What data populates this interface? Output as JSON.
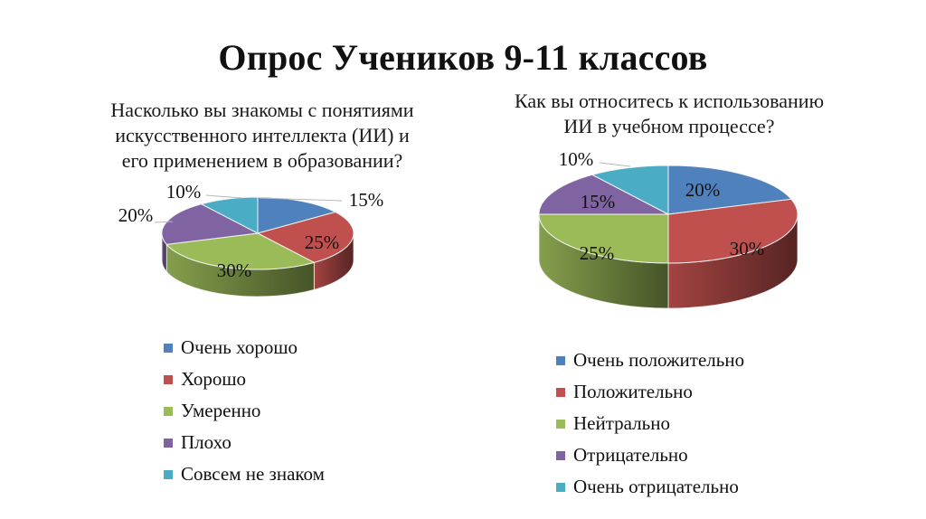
{
  "title": "Опрос Учеников 9-11 классов",
  "chart_data": [
    {
      "type": "pie",
      "title": "Насколько вы знакомы с понятиями искусственного интеллекта (ИИ) и его применением в образовании?",
      "categories": [
        "Очень хорошо",
        "Хорошо",
        "Умеренно",
        "Плохо",
        "Совсем не знаком"
      ],
      "values": [
        15,
        25,
        30,
        20,
        10
      ],
      "labels": [
        "15%",
        "25%",
        "30%",
        "20%",
        "10%"
      ],
      "colors": [
        "#4F81BD",
        "#C0504D",
        "#9BBB59",
        "#8064A2",
        "#4BACC6"
      ],
      "legend_position": "bottom",
      "style": "3d"
    },
    {
      "type": "pie",
      "title": "Как вы относитесь к использованию ИИ в учебном процессе?",
      "categories": [
        "Очень положительно",
        "Положительно",
        "Нейтрально",
        "Отрицательно",
        "Очень отрицательно"
      ],
      "values": [
        20,
        30,
        25,
        15,
        10
      ],
      "labels": [
        "20%",
        "30%",
        "25%",
        "15%",
        "10%"
      ],
      "colors": [
        "#4F81BD",
        "#C0504D",
        "#9BBB59",
        "#8064A2",
        "#4BACC6"
      ],
      "legend_position": "bottom",
      "style": "3d"
    }
  ],
  "left": {
    "question_lines": [
      "Насколько вы знакомы с понятиями",
      "искусственного интеллекта (ИИ) и",
      "его применением в образовании?"
    ],
    "legend": [
      {
        "label": "Очень хорошо",
        "color": "#4F81BD"
      },
      {
        "label": "Хорошо",
        "color": "#C0504D"
      },
      {
        "label": "Умеренно",
        "color": "#9BBB59"
      },
      {
        "label": "Плохо",
        "color": "#8064A2"
      },
      {
        "label": "Совсем не знаком",
        "color": "#4BACC6"
      }
    ]
  },
  "right": {
    "question_lines": [
      "Как вы относитесь к использованию",
      "ИИ в учебном процессе?"
    ],
    "legend": [
      {
        "label": "Очень положительно",
        "color": "#4F81BD"
      },
      {
        "label": "Положительно",
        "color": "#C0504D"
      },
      {
        "label": "Нейтрально",
        "color": "#9BBB59"
      },
      {
        "label": "Отрицательно",
        "color": "#8064A2"
      },
      {
        "label": "Очень отрицательно",
        "color": "#4BACC6"
      }
    ]
  }
}
